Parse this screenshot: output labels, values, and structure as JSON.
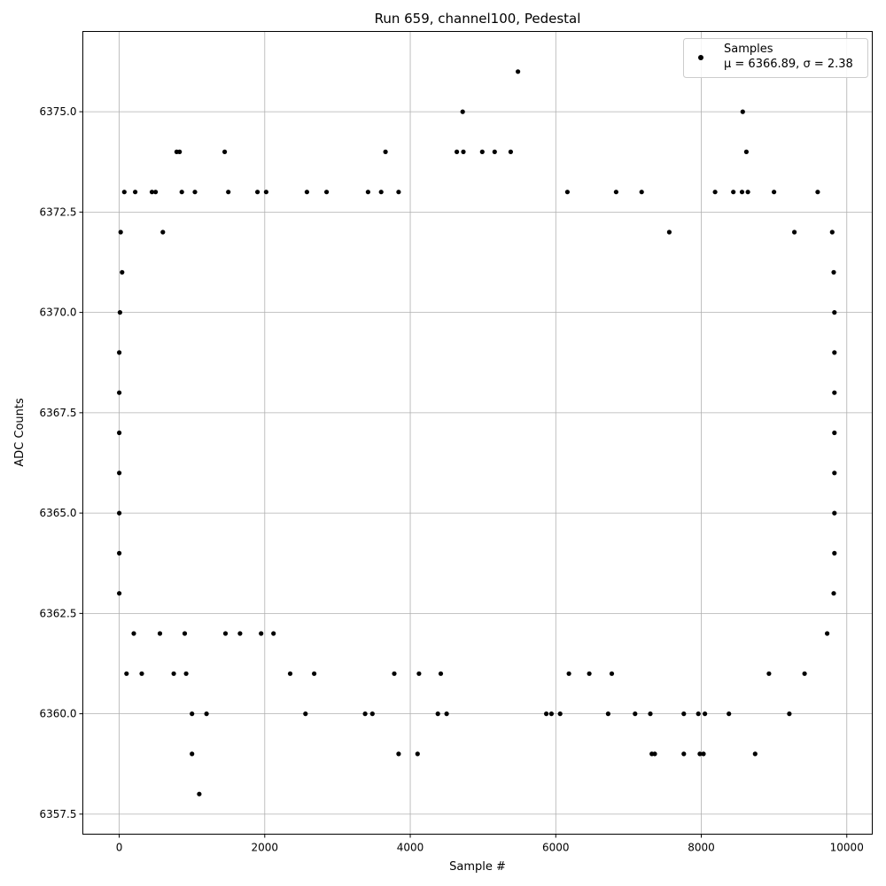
{
  "chart_data": {
    "type": "scatter",
    "title": "Run 659, channel100, Pedestal",
    "xlabel": "Sample #",
    "ylabel": "ADC Counts",
    "xlim": [
      -500,
      10350
    ],
    "ylim": [
      6357.0,
      6377.0
    ],
    "x_ticks": [
      0,
      2000,
      4000,
      6000,
      8000,
      10000
    ],
    "y_ticks": [
      6357.5,
      6360.0,
      6362.5,
      6365.0,
      6367.5,
      6370.0,
      6372.5,
      6375.0
    ],
    "x_tick_labels": [
      "0",
      "2000",
      "4000",
      "6000",
      "8000",
      "10000"
    ],
    "y_tick_labels": [
      "6357.5",
      "6360.0",
      "6362.5",
      "6365.0",
      "6367.5",
      "6370.0",
      "6372.5",
      "6375.0"
    ],
    "grid": true,
    "legend_position": "top-right",
    "marker_color": "#000000",
    "legend": {
      "label": "Samples",
      "stats": "μ = 6366.89, σ = 2.38"
    },
    "series": [
      {
        "name": "Samples",
        "points": [
          [
            0,
            6369
          ],
          [
            0,
            6368
          ],
          [
            0,
            6367
          ],
          [
            0,
            6366
          ],
          [
            0,
            6365
          ],
          [
            0,
            6364
          ],
          [
            0,
            6363
          ],
          [
            10,
            6370
          ],
          [
            20,
            6372
          ],
          [
            40,
            6371
          ],
          [
            70,
            6373
          ],
          [
            100,
            6361
          ],
          [
            200,
            6362
          ],
          [
            220,
            6373
          ],
          [
            310,
            6361
          ],
          [
            450,
            6373
          ],
          [
            500,
            6373
          ],
          [
            560,
            6362
          ],
          [
            600,
            6372
          ],
          [
            750,
            6361
          ],
          [
            790,
            6374
          ],
          [
            830,
            6374
          ],
          [
            860,
            6373
          ],
          [
            900,
            6362
          ],
          [
            920,
            6361
          ],
          [
            1000,
            6360
          ],
          [
            1000,
            6359
          ],
          [
            1040,
            6373
          ],
          [
            1100,
            6358
          ],
          [
            1200,
            6360
          ],
          [
            1450,
            6374
          ],
          [
            1460,
            6362
          ],
          [
            1500,
            6373
          ],
          [
            1660,
            6362
          ],
          [
            1900,
            6373
          ],
          [
            1950,
            6362
          ],
          [
            2020,
            6373
          ],
          [
            2120,
            6362
          ],
          [
            2350,
            6361
          ],
          [
            2560,
            6360
          ],
          [
            2580,
            6373
          ],
          [
            2680,
            6361
          ],
          [
            2850,
            6373
          ],
          [
            3380,
            6360
          ],
          [
            3420,
            6373
          ],
          [
            3480,
            6360
          ],
          [
            3600,
            6373
          ],
          [
            3660,
            6374
          ],
          [
            3780,
            6361
          ],
          [
            3840,
            6373
          ],
          [
            3840,
            6359
          ],
          [
            4100,
            6359
          ],
          [
            4120,
            6361
          ],
          [
            4380,
            6360
          ],
          [
            4420,
            6361
          ],
          [
            4500,
            6360
          ],
          [
            4640,
            6374
          ],
          [
            4720,
            6375
          ],
          [
            4730,
            6374
          ],
          [
            4990,
            6374
          ],
          [
            5160,
            6374
          ],
          [
            5380,
            6374
          ],
          [
            5480,
            6376
          ],
          [
            5870,
            6360
          ],
          [
            5940,
            6360
          ],
          [
            6060,
            6360
          ],
          [
            6160,
            6373
          ],
          [
            6180,
            6361
          ],
          [
            6460,
            6361
          ],
          [
            6720,
            6360
          ],
          [
            6770,
            6361
          ],
          [
            6830,
            6373
          ],
          [
            7090,
            6360
          ],
          [
            7180,
            6373
          ],
          [
            7300,
            6360
          ],
          [
            7320,
            6359
          ],
          [
            7360,
            6359
          ],
          [
            7560,
            6372
          ],
          [
            7760,
            6359
          ],
          [
            7760,
            6360
          ],
          [
            7960,
            6360
          ],
          [
            7980,
            6359
          ],
          [
            8030,
            6359
          ],
          [
            8050,
            6360
          ],
          [
            8190,
            6373
          ],
          [
            8380,
            6360
          ],
          [
            8440,
            6373
          ],
          [
            8560,
            6373
          ],
          [
            8570,
            6375
          ],
          [
            8620,
            6374
          ],
          [
            8640,
            6373
          ],
          [
            8740,
            6359
          ],
          [
            8930,
            6361
          ],
          [
            9000,
            6373
          ],
          [
            9210,
            6360
          ],
          [
            9280,
            6372
          ],
          [
            9420,
            6361
          ],
          [
            9600,
            6373
          ],
          [
            9730,
            6362
          ],
          [
            9800,
            6372
          ],
          [
            9820,
            6371
          ],
          [
            9830,
            6370
          ],
          [
            9830,
            6369
          ],
          [
            9830,
            6368
          ],
          [
            9830,
            6367
          ],
          [
            9830,
            6366
          ],
          [
            9830,
            6365
          ],
          [
            9830,
            6364
          ],
          [
            9820,
            6363
          ]
        ]
      }
    ]
  }
}
